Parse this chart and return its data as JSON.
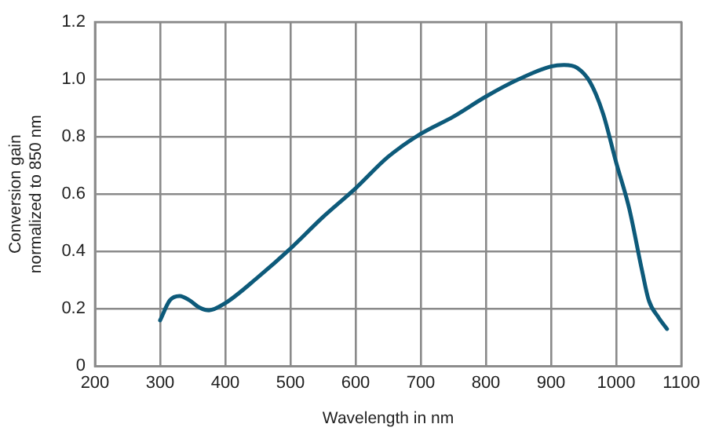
{
  "chart_data": {
    "type": "line",
    "xlabel": "Wavelength in nm",
    "ylabel": "Conversion gain\nnormalized to 850 nm",
    "xlim": [
      200,
      1100
    ],
    "xticks": [
      200,
      300,
      400,
      500,
      600,
      700,
      800,
      900,
      1000,
      1100
    ],
    "ylim": [
      0,
      1.2
    ],
    "yticks": [
      0,
      0.2,
      0.4,
      0.6,
      0.8,
      {
        "value": 1,
        "label": "1.0"
      },
      1.2
    ],
    "grid": true,
    "legend": false,
    "marker": "none",
    "line_style": "solid",
    "series": [
      {
        "color": "#0d5a7a",
        "x": [
          300,
          315,
          330,
          345,
          360,
          375,
          400,
          450,
          500,
          550,
          600,
          650,
          700,
          750,
          800,
          850,
          900,
          920,
          940,
          960,
          980,
          1000,
          1020,
          1040,
          1050,
          1065,
          1078
        ],
        "values": [
          0.16,
          0.23,
          0.245,
          0.23,
          0.205,
          0.195,
          0.22,
          0.31,
          0.41,
          0.52,
          0.62,
          0.73,
          0.81,
          0.87,
          0.94,
          1.0,
          1.045,
          1.05,
          1.04,
          0.99,
          0.88,
          0.71,
          0.55,
          0.33,
          0.23,
          0.17,
          0.13
        ]
      }
    ]
  }
}
